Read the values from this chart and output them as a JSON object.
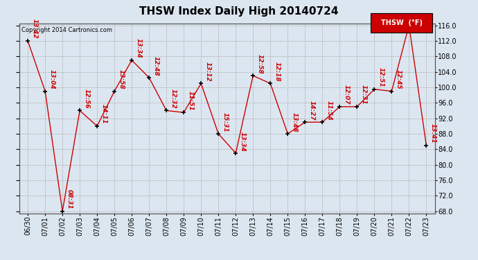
{
  "title": "THSW Index Daily High 20140724",
  "copyright": "Copyright 2014 Cartronics.com",
  "legend_label": "THSW  (°F)",
  "dates": [
    "06/30",
    "07/01",
    "07/02",
    "07/03",
    "07/04",
    "07/05",
    "07/06",
    "07/07",
    "07/08",
    "07/09",
    "07/10",
    "07/11",
    "07/12",
    "07/13",
    "07/14",
    "07/15",
    "07/16",
    "07/17",
    "07/18",
    "07/19",
    "07/20",
    "07/21",
    "07/22",
    "07/23"
  ],
  "values": [
    112.0,
    99.0,
    68.0,
    94.0,
    90.0,
    99.0,
    107.0,
    102.5,
    94.0,
    93.5,
    101.0,
    88.0,
    83.0,
    103.0,
    101.0,
    88.0,
    91.0,
    91.0,
    95.0,
    95.0,
    99.5,
    99.0,
    116.0,
    85.0
  ],
  "time_labels": [
    "13:42",
    "13:04",
    "08:31",
    "12:56",
    "14:11",
    "13:58",
    "13:34",
    "12:48",
    "12:32",
    "11:51",
    "13:12",
    "15:31",
    "13:34",
    "12:58",
    "12:18",
    "13:48",
    "14:27",
    "11:54",
    "12:07",
    "12:31",
    "12:51",
    "12:45",
    "",
    "13:41"
  ],
  "ylim_min": 68.0,
  "ylim_max": 116.0,
  "ytick_step": 4.0,
  "line_color": "#cc0000",
  "marker_color": "#000000",
  "bg_color": "#dce6f0",
  "plot_bg_color": "#dce6f0",
  "grid_color": "#aaaaaa",
  "title_fontsize": 11,
  "label_fontsize": 6.5,
  "legend_bg": "#cc0000",
  "legend_fg": "#ffffff"
}
